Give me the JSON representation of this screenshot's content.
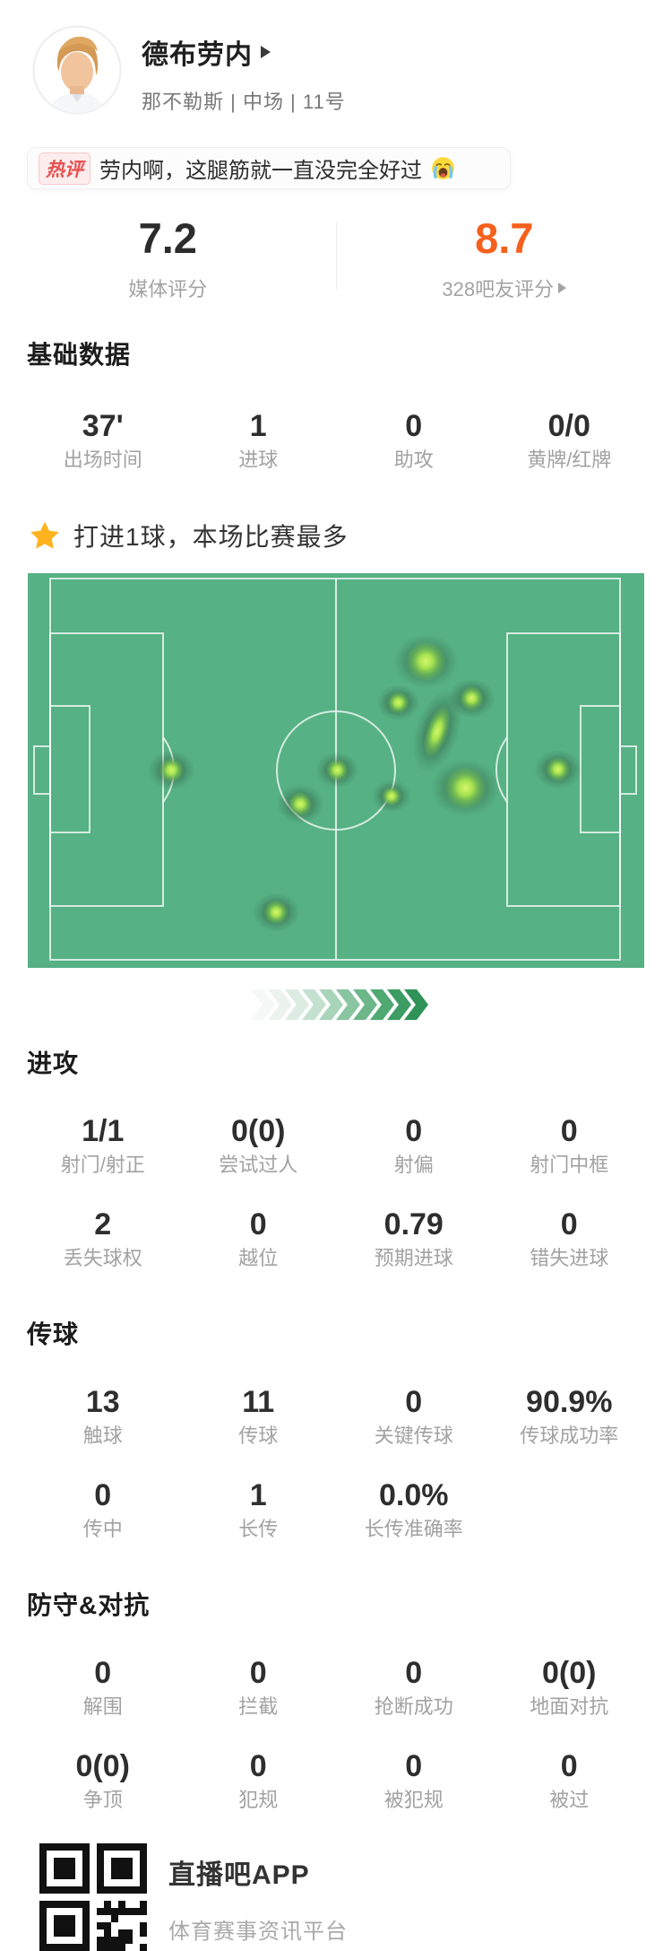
{
  "header": {
    "player_name": "德布劳内",
    "team_info": "那不勒斯 | 中场 | 11号"
  },
  "hot_comment": {
    "badge": "热评",
    "text": "劳内啊，这腿筋就一直没完全好过",
    "emoji": "😭"
  },
  "ratings": {
    "media": {
      "score": "7.2",
      "label": "媒体评分"
    },
    "fans": {
      "score": "8.7",
      "label": "328吧友评分"
    }
  },
  "highlight": {
    "text": "打进1球，本场比赛最多"
  },
  "sections": [
    {
      "title": "基础数据",
      "rows": [
        [
          {
            "v": "37'",
            "l": "出场时间"
          },
          {
            "v": "1",
            "l": "进球"
          },
          {
            "v": "0",
            "l": "助攻"
          },
          {
            "v": "0/0",
            "l": "黄牌/红牌"
          }
        ]
      ]
    },
    {
      "title": "进攻",
      "rows": [
        [
          {
            "v": "1/1",
            "l": "射门/射正"
          },
          {
            "v": "0(0)",
            "l": "尝试过人"
          },
          {
            "v": "0",
            "l": "射偏"
          },
          {
            "v": "0",
            "l": "射门中框"
          }
        ],
        [
          {
            "v": "2",
            "l": "丢失球权"
          },
          {
            "v": "0",
            "l": "越位"
          },
          {
            "v": "0.79",
            "l": "预期进球"
          },
          {
            "v": "0",
            "l": "错失进球"
          }
        ]
      ]
    },
    {
      "title": "传球",
      "rows": [
        [
          {
            "v": "13",
            "l": "触球"
          },
          {
            "v": "11",
            "l": "传球"
          },
          {
            "v": "0",
            "l": "关键传球"
          },
          {
            "v": "90.9%",
            "l": "传球成功率"
          }
        ],
        [
          {
            "v": "0",
            "l": "传中"
          },
          {
            "v": "1",
            "l": "长传"
          },
          {
            "v": "0.0%",
            "l": "长传准确率"
          }
        ]
      ]
    },
    {
      "title": "防守&对抗",
      "rows": [
        [
          {
            "v": "0",
            "l": "解围"
          },
          {
            "v": "0",
            "l": "拦截"
          },
          {
            "v": "0",
            "l": "抢断成功"
          },
          {
            "v": "0(0)",
            "l": "地面对抗"
          }
        ],
        [
          {
            "v": "0(0)",
            "l": "争顶"
          },
          {
            "v": "0",
            "l": "犯规"
          },
          {
            "v": "0",
            "l": "被犯规"
          },
          {
            "v": "0",
            "l": "被过"
          }
        ]
      ]
    }
  ],
  "heatmap": {
    "description": "touch heatmap on football pitch, attacking left-to-right",
    "pitch_green": "#56b184",
    "heat_core": "#c9f162",
    "points": [
      {
        "x": 64.6,
        "y": 22.3,
        "r": 15,
        "hot": true
      },
      {
        "x": 60.1,
        "y": 32.8,
        "r": 10
      },
      {
        "x": 72.0,
        "y": 31.7,
        "r": 11
      },
      {
        "x": 66.4,
        "y": 40.1,
        "r": 10,
        "ry": 24,
        "rot": 18
      },
      {
        "x": 23.3,
        "y": 49.9,
        "r": 11
      },
      {
        "x": 50.2,
        "y": 49.9,
        "r": 10
      },
      {
        "x": 44.2,
        "y": 58.5,
        "r": 11
      },
      {
        "x": 59.0,
        "y": 56.5,
        "r": 9
      },
      {
        "x": 71.0,
        "y": 54.4,
        "r": 16,
        "hot": true
      },
      {
        "x": 86.0,
        "y": 49.7,
        "r": 11
      },
      {
        "x": 40.3,
        "y": 85.9,
        "r": 11
      }
    ]
  },
  "footer": {
    "app_name": "直播吧APP",
    "app_desc": "体育赛事资讯平台"
  },
  "colors": {
    "accent_orange": "#f5611d",
    "hot_red": "#e65050",
    "star_yellow": "#ffb41f",
    "pitch_green": "#56b184",
    "value_dark": "#2e2e2e",
    "label_gray": "#a2a2a2"
  }
}
